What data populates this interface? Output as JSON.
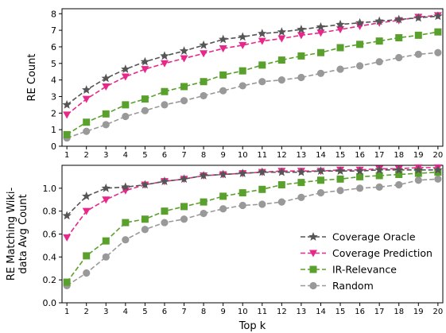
{
  "chart_data": [
    {
      "type": "line",
      "title": "",
      "xlabel": "",
      "ylabel": "RE Count",
      "x": [
        1,
        2,
        3,
        4,
        5,
        6,
        7,
        8,
        9,
        10,
        11,
        12,
        13,
        14,
        15,
        16,
        17,
        18,
        19,
        20
      ],
      "ylim": [
        0,
        8.3
      ],
      "yticks": [
        0,
        1,
        2,
        3,
        4,
        5,
        6,
        7,
        8
      ],
      "series": [
        {
          "name": "Coverage Oracle",
          "color": "#555555",
          "marker": "star",
          "values": [
            2.5,
            3.4,
            4.1,
            4.65,
            5.1,
            5.45,
            5.75,
            6.1,
            6.45,
            6.6,
            6.8,
            6.9,
            7.05,
            7.2,
            7.35,
            7.45,
            7.55,
            7.65,
            7.75,
            7.85
          ]
        },
        {
          "name": "Coverage Prediction",
          "color": "#e8278a",
          "marker": "triangle-down",
          "values": [
            1.9,
            2.85,
            3.6,
            4.2,
            4.65,
            5.0,
            5.3,
            5.6,
            5.9,
            6.1,
            6.35,
            6.5,
            6.7,
            6.85,
            7.05,
            7.25,
            7.45,
            7.6,
            7.8,
            7.9
          ]
        },
        {
          "name": "IR-Relevance",
          "color": "#5aa02c",
          "marker": "square",
          "values": [
            0.7,
            1.45,
            1.95,
            2.5,
            2.85,
            3.3,
            3.6,
            3.9,
            4.3,
            4.55,
            4.9,
            5.2,
            5.45,
            5.65,
            5.95,
            6.15,
            6.35,
            6.55,
            6.7,
            6.9
          ]
        },
        {
          "name": "Random",
          "color": "#999999",
          "marker": "circle",
          "values": [
            0.5,
            0.9,
            1.3,
            1.8,
            2.15,
            2.5,
            2.75,
            3.05,
            3.35,
            3.65,
            3.9,
            4.0,
            4.15,
            4.4,
            4.65,
            4.85,
            5.1,
            5.35,
            5.55,
            5.65
          ]
        }
      ]
    },
    {
      "type": "line",
      "title": "",
      "xlabel": "Top k",
      "ylabel": "RE Matching Wiki- data Avg Count",
      "x": [
        1,
        2,
        3,
        4,
        5,
        6,
        7,
        8,
        9,
        10,
        11,
        12,
        13,
        14,
        15,
        16,
        17,
        18,
        19,
        20
      ],
      "ylim": [
        0,
        1.2
      ],
      "yticks": [
        0.0,
        0.2,
        0.4,
        0.6,
        0.8,
        1.0
      ],
      "ytick_labels": [
        "0.0",
        "0.2",
        "0.4",
        "0.6",
        "0.8",
        "1.0"
      ],
      "legend_position": "lower-right",
      "series": [
        {
          "name": "Coverage Oracle",
          "color": "#555555",
          "marker": "star",
          "values": [
            0.76,
            0.93,
            1.0,
            1.01,
            1.03,
            1.06,
            1.08,
            1.11,
            1.12,
            1.13,
            1.14,
            1.14,
            1.14,
            1.15,
            1.15,
            1.15,
            1.16,
            1.16,
            1.16,
            1.16
          ]
        },
        {
          "name": "Coverage Prediction",
          "color": "#e8278a",
          "marker": "triangle-down",
          "values": [
            0.57,
            0.8,
            0.9,
            0.98,
            1.03,
            1.06,
            1.08,
            1.11,
            1.12,
            1.13,
            1.14,
            1.15,
            1.15,
            1.15,
            1.16,
            1.16,
            1.17,
            1.17,
            1.18,
            1.18
          ]
        },
        {
          "name": "IR-Relevance",
          "color": "#5aa02c",
          "marker": "square",
          "values": [
            0.18,
            0.41,
            0.54,
            0.7,
            0.73,
            0.8,
            0.84,
            0.88,
            0.93,
            0.96,
            0.99,
            1.03,
            1.05,
            1.07,
            1.08,
            1.1,
            1.11,
            1.12,
            1.13,
            1.14
          ]
        },
        {
          "name": "Random",
          "color": "#999999",
          "marker": "circle",
          "values": [
            0.15,
            0.26,
            0.4,
            0.55,
            0.64,
            0.7,
            0.73,
            0.78,
            0.82,
            0.85,
            0.86,
            0.88,
            0.92,
            0.96,
            0.98,
            1.0,
            1.01,
            1.03,
            1.07,
            1.08
          ]
        }
      ]
    }
  ]
}
